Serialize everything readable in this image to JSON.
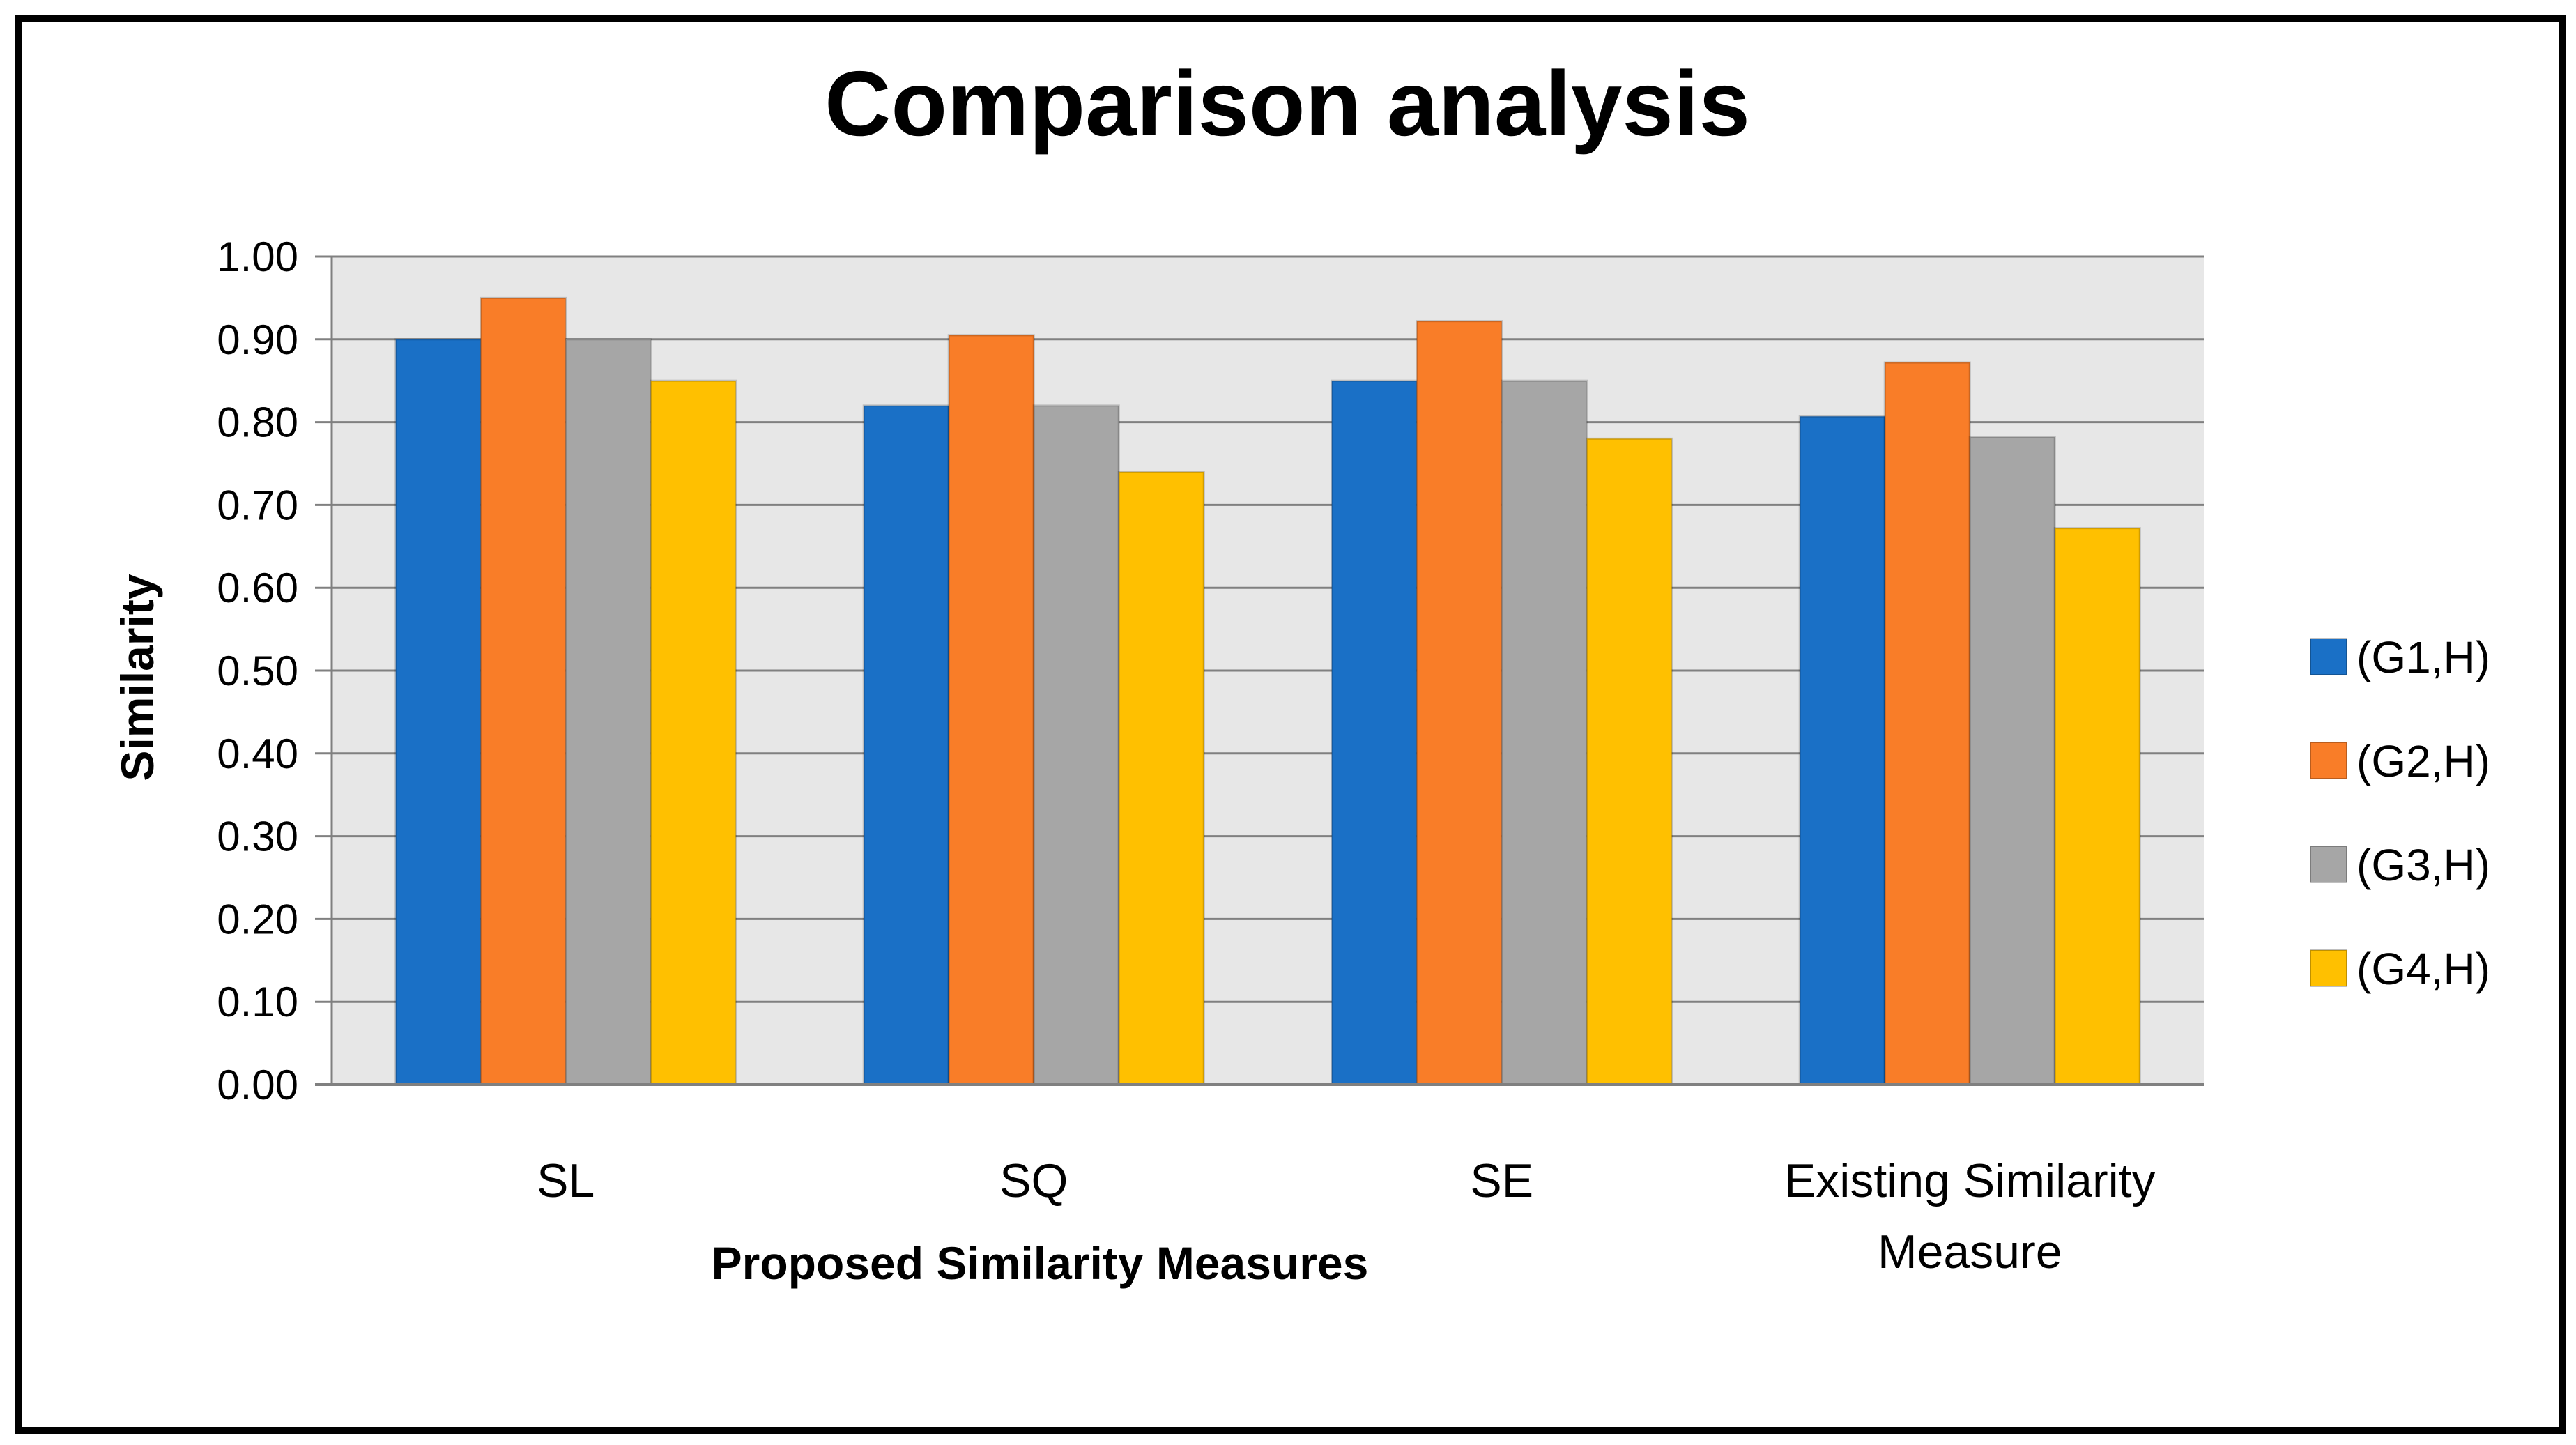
{
  "chart_data": {
    "type": "bar",
    "title": "Comparison analysis",
    "xlabel": "Proposed Similarity Measures",
    "ylabel": "Similarity",
    "ylim": [
      0,
      1
    ],
    "ytick_step": 0.1,
    "ytick_labels": [
      "0.00",
      "0.10",
      "0.20",
      "0.30",
      "0.40",
      "0.50",
      "0.60",
      "0.70",
      "0.80",
      "0.90",
      "1.00"
    ],
    "grid": true,
    "legend_position": "right",
    "categories": [
      [
        "SL"
      ],
      [
        "SQ"
      ],
      [
        "SE"
      ],
      [
        "Existing Similarity",
        "Measure"
      ]
    ],
    "series": [
      {
        "name": "(G1,H)",
        "color": "#1A70C6",
        "values": [
          0.9,
          0.82,
          0.85,
          0.807
        ]
      },
      {
        "name": "(G2,H)",
        "color": "#F97D28",
        "values": [
          0.95,
          0.905,
          0.922,
          0.872
        ]
      },
      {
        "name": "(G3,H)",
        "color": "#A6A6A6",
        "values": [
          0.9,
          0.82,
          0.85,
          0.782
        ]
      },
      {
        "name": "(G4,H)",
        "color": "#FFC000",
        "values": [
          0.85,
          0.74,
          0.78,
          0.672
        ]
      }
    ],
    "plot_background": "#E7E7E7",
    "gridline_color": "#808080"
  }
}
